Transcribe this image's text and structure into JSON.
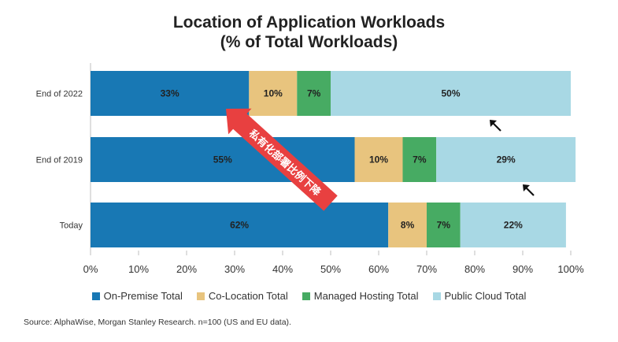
{
  "chart_data": {
    "type": "bar",
    "orientation": "horizontal",
    "stacked": true,
    "title_lines": [
      "Location of Application Workloads",
      "(% of Total Workloads)"
    ],
    "categories": [
      "End of 2022",
      "End of 2019",
      "Today"
    ],
    "series": [
      {
        "name": "On-Premise Total",
        "color": "#1878b4",
        "values": [
          33,
          55,
          62
        ],
        "labels": [
          "33%",
          "55%",
          "62%"
        ]
      },
      {
        "name": "Co-Location Total",
        "color": "#e8c47e",
        "values": [
          10,
          10,
          8
        ],
        "labels": [
          "10%",
          "10%",
          "8%"
        ]
      },
      {
        "name": "Managed Hosting Total",
        "color": "#47ab63",
        "values": [
          7,
          7,
          7
        ],
        "labels": [
          "7%",
          "7%",
          "7%"
        ]
      },
      {
        "name": "Public Cloud Total",
        "color": "#a8d8e4",
        "values": [
          50,
          29,
          22
        ],
        "labels": [
          "50%",
          "29%",
          "22%"
        ]
      }
    ],
    "xlim": [
      0,
      100
    ],
    "x_ticks": [
      "0%",
      "10%",
      "20%",
      "30%",
      "40%",
      "50%",
      "60%",
      "70%",
      "80%",
      "90%",
      "100%"
    ],
    "legend_position": "bottom",
    "grid": false
  },
  "annotation": {
    "arrow_text": "私有化部署比例下降",
    "arrow_color": "#e84040"
  },
  "source_note": "Source: AlphaWise, Morgan Stanley Research. n=100 (US and EU data)."
}
